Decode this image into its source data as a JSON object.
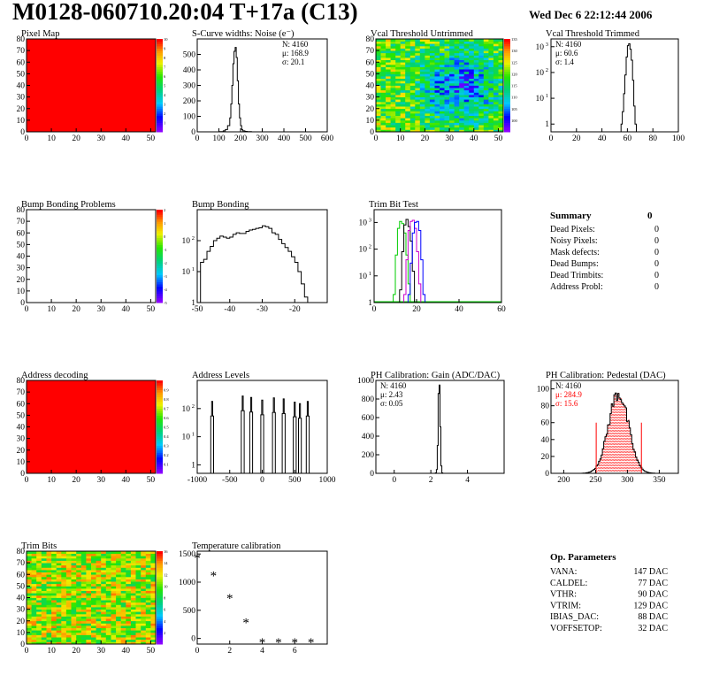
{
  "header": {
    "title": "M0128-060710.20:04 T+17a (C13)",
    "timestamp": "Wed Dec  6 22:12:44 2006"
  },
  "panels": [
    {
      "id": "pixel-map",
      "title": "Pixel Map"
    },
    {
      "id": "scurve-widths",
      "title": "S-Curve widths: Noise (e⁻)"
    },
    {
      "id": "vcal-untrimmed",
      "title": "Vcal Threshold Untrimmed"
    },
    {
      "id": "vcal-trimmed",
      "title": "Vcal Threshold Trimmed"
    },
    {
      "id": "bump-problems",
      "title": "Bump Bonding Problems"
    },
    {
      "id": "bump-bonding",
      "title": "Bump Bonding"
    },
    {
      "id": "trim-bit-test",
      "title": "Trim Bit Test"
    },
    {
      "id": "address-decoding",
      "title": "Address decoding"
    },
    {
      "id": "address-levels",
      "title": "Address Levels"
    },
    {
      "id": "ph-gain",
      "title": "PH Calibration: Gain (ADC/DAC)"
    },
    {
      "id": "ph-pedestal",
      "title": "PH Calibration: Pedestal (DAC)"
    },
    {
      "id": "trim-bits",
      "title": "Trim Bits"
    },
    {
      "id": "temp-calibration",
      "title": "Temperature calibration"
    }
  ],
  "summary": {
    "title": "Summary",
    "value": "0",
    "rows": [
      {
        "label": "Dead Pixels:",
        "value": "0"
      },
      {
        "label": "Noisy Pixels:",
        "value": "0"
      },
      {
        "label": "Mask defects:",
        "value": "0"
      },
      {
        "label": "Dead Bumps:",
        "value": "0"
      },
      {
        "label": "Dead Trimbits:",
        "value": "0"
      },
      {
        "label": "Address Probl:",
        "value": "0"
      }
    ]
  },
  "op_parameters": {
    "title": "Op. Parameters",
    "rows": [
      {
        "label": "VANA:",
        "value": "147 DAC"
      },
      {
        "label": "CALDEL:",
        "value": "77 DAC"
      },
      {
        "label": "VTHR:",
        "value": "90 DAC"
      },
      {
        "label": "VTRIM:",
        "value": "129 DAC"
      },
      {
        "label": "IBIAS_DAC:",
        "value": "88 DAC"
      },
      {
        "label": "VOFFSETOP:",
        "value": "32 DAC"
      }
    ]
  },
  "colors": {
    "red": "#ff0000",
    "trim_green": "#00cc00",
    "trim_blue": "#0000ff",
    "trim_magenta": "#cc00cc",
    "trim_black": "#000000"
  },
  "chart_data": [
    {
      "id": "pixel-map",
      "type": "heatmap",
      "title": "Pixel Map",
      "xlim": [
        0,
        52
      ],
      "ylim": [
        0,
        80
      ],
      "xticks": [
        0,
        10,
        20,
        30,
        40,
        50
      ],
      "yticks": [
        0,
        10,
        20,
        30,
        40,
        50,
        60,
        70,
        80
      ],
      "fill": "uniform max",
      "zlim": [
        0,
        10
      ],
      "zticks": [
        1,
        2,
        3,
        4,
        5,
        6,
        7,
        8,
        9,
        10
      ]
    },
    {
      "id": "scurve-widths",
      "type": "histogram",
      "title": "S-Curve widths: Noise (e⁻)",
      "xlim": [
        0,
        600
      ],
      "ylim": [
        0,
        600
      ],
      "xticks": [
        0,
        100,
        200,
        300,
        400,
        500,
        600
      ],
      "yticks": [
        0,
        100,
        200,
        300,
        400,
        500
      ],
      "stats": {
        "N": "4160",
        "mean": "168.9",
        "sigma": "20.1"
      },
      "x": [
        100,
        120,
        130,
        140,
        150,
        155,
        160,
        165,
        170,
        175,
        180,
        185,
        190,
        195,
        200,
        205,
        210,
        220,
        230,
        250
      ],
      "y": [
        2,
        6,
        15,
        40,
        90,
        180,
        300,
        440,
        520,
        545,
        480,
        330,
        180,
        90,
        40,
        15,
        6,
        3,
        1,
        0
      ]
    },
    {
      "id": "vcal-untrimmed",
      "type": "heatmap",
      "title": "Vcal Threshold Untrimmed",
      "xlim": [
        0,
        52
      ],
      "ylim": [
        0,
        80
      ],
      "xticks": [
        0,
        10,
        20,
        30,
        40,
        50
      ],
      "yticks": [
        0,
        10,
        20,
        30,
        40,
        50,
        60,
        70,
        80
      ],
      "fill": "noisy, lower in centre-right",
      "zlim": [
        95,
        135
      ],
      "zticks": [
        100,
        105,
        110,
        115,
        120,
        125,
        130,
        135
      ]
    },
    {
      "id": "vcal-trimmed",
      "type": "histogram",
      "title": "Vcal Threshold Trimmed",
      "xlim": [
        0,
        100
      ],
      "log_y": true,
      "ylim": [
        0.5,
        2000
      ],
      "xticks": [
        0,
        20,
        40,
        60,
        80,
        100
      ],
      "yticks": [
        1,
        10,
        100,
        1000
      ],
      "stats": {
        "N": "4160",
        "mean": "60.6",
        "sigma": "1.4"
      },
      "x": [
        55,
        56,
        57,
        58,
        59,
        60,
        61,
        62,
        63,
        64,
        65,
        66
      ],
      "y": [
        1,
        3,
        15,
        80,
        400,
        1100,
        1300,
        800,
        300,
        50,
        5,
        1
      ]
    },
    {
      "id": "bump-problems",
      "type": "heatmap",
      "title": "Bump Bonding Problems",
      "xlim": [
        0,
        52
      ],
      "ylim": [
        0,
        80
      ],
      "xticks": [
        0,
        10,
        20,
        30,
        40,
        50
      ],
      "yticks": [
        0,
        10,
        20,
        30,
        40,
        50,
        60,
        70,
        80
      ],
      "fill": "empty",
      "zlim": [
        -5,
        2
      ],
      "zticks": [
        -5,
        -4,
        -3,
        -2,
        -1,
        0,
        1,
        2
      ]
    },
    {
      "id": "bump-bonding",
      "type": "histogram",
      "title": "Bump Bonding",
      "xlim": [
        -50,
        -10
      ],
      "log_y": true,
      "ylim": [
        1,
        1000
      ],
      "xticks": [
        -50,
        -40,
        -30,
        -20
      ],
      "yticks": [
        1,
        10,
        100
      ],
      "x": [
        -49,
        -48,
        -47,
        -46,
        -45,
        -44,
        -43,
        -42,
        -41,
        -40,
        -39,
        -38,
        -37,
        -36,
        -35,
        -34,
        -33,
        -32,
        -31,
        -30,
        -29,
        -28,
        -27,
        -26,
        -25,
        -24,
        -23,
        -22,
        -21,
        -20,
        -19,
        -18,
        -17,
        -16,
        -15
      ],
      "y": [
        20,
        25,
        45,
        65,
        100,
        120,
        140,
        130,
        120,
        130,
        160,
        180,
        170,
        170,
        200,
        220,
        230,
        250,
        260,
        300,
        280,
        250,
        180,
        160,
        110,
        80,
        60,
        45,
        30,
        20,
        10,
        4,
        1.5,
        1,
        0
      ]
    },
    {
      "id": "trim-bit-test",
      "type": "histogram",
      "title": "Trim Bit Test",
      "xlim": [
        0,
        60
      ],
      "log_y": true,
      "ylim": [
        1,
        3000
      ],
      "xticks": [
        0,
        20,
        40,
        60
      ],
      "yticks": [
        1,
        10,
        100,
        1000
      ],
      "series": [
        {
          "color": "#00cc00",
          "x": [
            9,
            10,
            11,
            12,
            13,
            14,
            15,
            16,
            17
          ],
          "y": [
            2,
            60,
            600,
            1100,
            900,
            400,
            60,
            5,
            1
          ]
        },
        {
          "color": "#000000",
          "x": [
            12,
            13,
            14,
            15,
            16,
            17,
            18,
            19
          ],
          "y": [
            3,
            80,
            800,
            1300,
            700,
            200,
            15,
            1
          ]
        },
        {
          "color": "#cc00cc",
          "x": [
            14,
            15,
            16,
            17,
            18,
            19,
            20,
            21,
            22
          ],
          "y": [
            2,
            40,
            500,
            1100,
            1200,
            600,
            80,
            5,
            1
          ]
        },
        {
          "color": "#0000ff",
          "x": [
            16,
            17,
            18,
            19,
            20,
            21,
            22,
            23
          ],
          "y": [
            2,
            30,
            400,
            1000,
            1100,
            500,
            40,
            2
          ]
        }
      ]
    },
    {
      "id": "address-decoding",
      "type": "heatmap",
      "title": "Address decoding",
      "xlim": [
        0,
        52
      ],
      "ylim": [
        0,
        80
      ],
      "xticks": [
        0,
        10,
        20,
        30,
        40,
        50
      ],
      "yticks": [
        0,
        10,
        20,
        30,
        40,
        50,
        60,
        70,
        80
      ],
      "fill": "uniform max",
      "zlim": [
        0,
        1
      ],
      "zticks": [
        0.1,
        0.2,
        0.3,
        0.4,
        0.5,
        0.6,
        0.7,
        0.8,
        0.9
      ]
    },
    {
      "id": "address-levels",
      "type": "histogram",
      "title": "Address Levels",
      "xlim": [
        -1000,
        1000
      ],
      "log_y": true,
      "ylim": [
        0.5,
        1000
      ],
      "xticks": [
        -1000,
        -500,
        0,
        500,
        1000
      ],
      "yticks": [
        1,
        10,
        100
      ],
      "peaks": [
        {
          "center": -770,
          "height": 180
        },
        {
          "center": -300,
          "height": 280
        },
        {
          "center": -170,
          "height": 250
        },
        {
          "center": 0,
          "height": 200
        },
        {
          "center": 180,
          "height": 240
        },
        {
          "center": 330,
          "height": 220
        },
        {
          "center": 500,
          "height": 170
        },
        {
          "center": 580,
          "height": 150
        },
        {
          "center": 700,
          "height": 180
        }
      ]
    },
    {
      "id": "ph-gain",
      "type": "histogram",
      "title": "PH Calibration: Gain (ADC/DAC)",
      "xlim": [
        -1,
        6
      ],
      "ylim": [
        0,
        1000
      ],
      "xticks": [
        0,
        2,
        4
      ],
      "yticks": [
        0,
        200,
        400,
        600,
        800,
        1000
      ],
      "stats": {
        "N": "4160",
        "mean": "2.43",
        "sigma": "0.05"
      },
      "x": [
        2.25,
        2.3,
        2.35,
        2.4,
        2.45,
        2.5,
        2.55,
        2.6
      ],
      "y": [
        5,
        40,
        300,
        860,
        950,
        500,
        80,
        5
      ]
    },
    {
      "id": "ph-pedestal",
      "type": "histogram",
      "title": "PH Calibration: Pedestal (DAC)",
      "xlim": [
        180,
        380
      ],
      "ylim": [
        0,
        110
      ],
      "xticks": [
        200,
        250,
        300,
        350
      ],
      "yticks": [
        0,
        20,
        40,
        60,
        80,
        100
      ],
      "stats": {
        "N": "4160",
        "mean": "284.9",
        "sigma": "15.6"
      },
      "mean": 284.9,
      "sigma": 15.6,
      "peak": 95,
      "cut_lines": [
        251,
        322
      ]
    },
    {
      "id": "trim-bits",
      "type": "heatmap",
      "title": "Trim Bits",
      "xlim": [
        0,
        52
      ],
      "ylim": [
        0,
        80
      ],
      "xticks": [
        0,
        10,
        20,
        30,
        40,
        50
      ],
      "yticks": [
        0,
        10,
        20,
        30,
        40,
        50,
        60,
        70,
        80
      ],
      "fill": "noisy, mostly high",
      "zlim": [
        0,
        16
      ],
      "zticks": [
        2,
        4,
        6,
        8,
        10,
        12,
        14,
        16
      ]
    },
    {
      "id": "temp-calibration",
      "type": "scatter",
      "title": "Temperature calibration",
      "xlim": [
        0,
        8
      ],
      "ylim": [
        -100,
        1550
      ],
      "xticks": [
        0,
        2,
        4,
        6
      ],
      "yticks": [
        0,
        500,
        1000,
        1500
      ],
      "x": [
        0,
        1,
        2,
        3,
        4,
        5,
        6,
        7
      ],
      "y": [
        1450,
        1130,
        730,
        300,
        -50,
        -50,
        -50,
        -50
      ]
    }
  ]
}
